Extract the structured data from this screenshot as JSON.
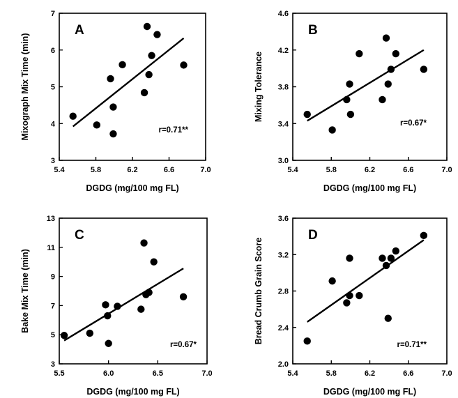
{
  "chart_data": [
    {
      "type": "scatter",
      "panel_label": "A",
      "xlabel": "DGDG (mg/100 mg FL)",
      "ylabel": "Mixograph Mix Time (min)",
      "xlim": [
        5.4,
        7.0
      ],
      "ylim": [
        3,
        7
      ],
      "xticks": [
        "5.4",
        "5.8",
        "6.2",
        "6.6",
        "7.0"
      ],
      "yticks": [
        "3",
        "4",
        "5",
        "6",
        "7"
      ],
      "points": [
        {
          "x": 5.55,
          "y": 4.2
        },
        {
          "x": 5.81,
          "y": 3.96
        },
        {
          "x": 5.96,
          "y": 5.22
        },
        {
          "x": 5.99,
          "y": 4.45
        },
        {
          "x": 5.99,
          "y": 3.72
        },
        {
          "x": 6.09,
          "y": 5.6
        },
        {
          "x": 6.33,
          "y": 4.84
        },
        {
          "x": 6.36,
          "y": 6.64
        },
        {
          "x": 6.38,
          "y": 5.33
        },
        {
          "x": 6.41,
          "y": 5.85
        },
        {
          "x": 6.47,
          "y": 6.42
        },
        {
          "x": 6.76,
          "y": 5.59
        }
      ],
      "fit_line": [
        {
          "x": 5.55,
          "y": 3.92
        },
        {
          "x": 6.76,
          "y": 6.32
        }
      ],
      "annotation": "r=0.71**"
    },
    {
      "type": "scatter",
      "panel_label": "B",
      "xlabel": "DGDG (mg/100 mg FL)",
      "ylabel": "Mixing Tolerance",
      "xlim": [
        5.4,
        7.0
      ],
      "ylim": [
        3.0,
        4.6
      ],
      "xticks": [
        "5.4",
        "5.8",
        "6.2",
        "6.6",
        "7.0"
      ],
      "yticks": [
        "3.0",
        "3.4",
        "3.8",
        "4.2",
        "4.6"
      ],
      "points": [
        {
          "x": 5.55,
          "y": 3.5
        },
        {
          "x": 5.81,
          "y": 3.33
        },
        {
          "x": 5.96,
          "y": 3.66
        },
        {
          "x": 5.99,
          "y": 3.83
        },
        {
          "x": 6.0,
          "y": 3.5
        },
        {
          "x": 6.09,
          "y": 4.16
        },
        {
          "x": 6.33,
          "y": 3.66
        },
        {
          "x": 6.37,
          "y": 4.33
        },
        {
          "x": 6.39,
          "y": 3.83
        },
        {
          "x": 6.42,
          "y": 3.99
        },
        {
          "x": 6.47,
          "y": 4.16
        },
        {
          "x": 6.76,
          "y": 3.99
        }
      ],
      "fit_line": [
        {
          "x": 5.55,
          "y": 3.43
        },
        {
          "x": 6.76,
          "y": 4.2
        }
      ],
      "annotation": "r=0.67*"
    },
    {
      "type": "scatter",
      "panel_label": "C",
      "xlabel": "DGDG (mg/100 mg FL)",
      "ylabel": "Bake Mix Time (min)",
      "xlim": [
        5.5,
        7.0
      ],
      "ylim": [
        3,
        13
      ],
      "xticks": [
        "5.5",
        "6.0",
        "6.5",
        "7.0"
      ],
      "yticks": [
        "3",
        "5",
        "7",
        "9",
        "11",
        "13"
      ],
      "points": [
        {
          "x": 5.55,
          "y": 4.95
        },
        {
          "x": 5.81,
          "y": 5.1
        },
        {
          "x": 5.97,
          "y": 7.05
        },
        {
          "x": 5.99,
          "y": 6.3
        },
        {
          "x": 6.0,
          "y": 4.4
        },
        {
          "x": 6.09,
          "y": 6.95
        },
        {
          "x": 6.33,
          "y": 6.75
        },
        {
          "x": 6.36,
          "y": 11.3
        },
        {
          "x": 6.38,
          "y": 7.75
        },
        {
          "x": 6.41,
          "y": 7.9
        },
        {
          "x": 6.46,
          "y": 10.0
        },
        {
          "x": 6.76,
          "y": 7.6
        }
      ],
      "fit_line": [
        {
          "x": 5.55,
          "y": 4.6
        },
        {
          "x": 6.76,
          "y": 9.55
        }
      ],
      "annotation": "r=0.67*"
    },
    {
      "type": "scatter",
      "panel_label": "D",
      "xlabel": "DGDG (mg/100 mg FL)",
      "ylabel": "Bread Crumb Grain Score",
      "xlim": [
        5.4,
        7.0
      ],
      "ylim": [
        2.0,
        3.6
      ],
      "xticks": [
        "5.4",
        "5.8",
        "6.2",
        "6.6",
        "7.0"
      ],
      "yticks": [
        "2.0",
        "2.4",
        "2.8",
        "3.2",
        "3.6"
      ],
      "points": [
        {
          "x": 5.55,
          "y": 2.25
        },
        {
          "x": 5.81,
          "y": 2.91
        },
        {
          "x": 5.96,
          "y": 2.67
        },
        {
          "x": 5.99,
          "y": 2.75
        },
        {
          "x": 5.99,
          "y": 3.16
        },
        {
          "x": 6.09,
          "y": 2.75
        },
        {
          "x": 6.33,
          "y": 3.16
        },
        {
          "x": 6.37,
          "y": 3.08
        },
        {
          "x": 6.39,
          "y": 2.5
        },
        {
          "x": 6.42,
          "y": 3.16
        },
        {
          "x": 6.47,
          "y": 3.24
        },
        {
          "x": 6.76,
          "y": 3.41
        }
      ],
      "fit_line": [
        {
          "x": 5.55,
          "y": 2.46
        },
        {
          "x": 6.76,
          "y": 3.36
        }
      ],
      "annotation": "r=0.71**"
    }
  ]
}
